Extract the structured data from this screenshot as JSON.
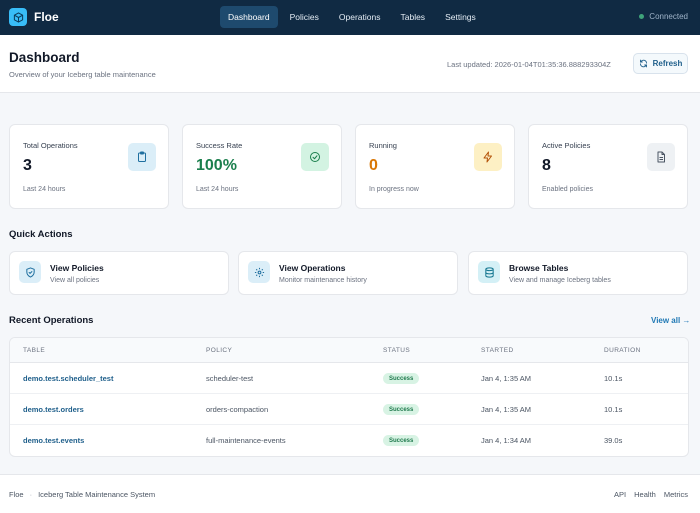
{
  "app": {
    "name": "Floe",
    "connection_status": "Connected"
  },
  "nav": {
    "items": [
      "Dashboard",
      "Policies",
      "Operations",
      "Tables",
      "Settings"
    ],
    "active": "Dashboard"
  },
  "header": {
    "title": "Dashboard",
    "subtitle": "Overview of your Iceberg table maintenance",
    "last_updated": "Last updated: 2026-01-04T01:35:36.888293304Z",
    "refresh_label": "Refresh"
  },
  "stats": [
    {
      "label": "Total Operations",
      "value": "3",
      "sub": "Last 24 hours",
      "icon": "clipboard-icon",
      "value_color": "#111827",
      "icon_bg": "#dbeef8",
      "icon_color": "#1f6f9f"
    },
    {
      "label": "Success Rate",
      "value": "100%",
      "sub": "Last 24 hours",
      "icon": "check-circle-icon",
      "value_color": "#1b7f4d",
      "icon_bg": "#d3f3e2",
      "icon_color": "#1b7f4d"
    },
    {
      "label": "Running",
      "value": "0",
      "sub": "In progress now",
      "icon": "lightning-icon",
      "value_color": "#d97706",
      "icon_bg": "#fdf0c4",
      "icon_color": "#b45309"
    },
    {
      "label": "Active Policies",
      "value": "8",
      "sub": "Enabled policies",
      "icon": "document-icon",
      "value_color": "#111827",
      "icon_bg": "#eef1f4",
      "icon_color": "#4b5563"
    }
  ],
  "quick_actions": {
    "title": "Quick Actions",
    "items": [
      {
        "title": "View Policies",
        "sub": "View all policies",
        "icon": "shield-icon",
        "icon_bg": "#dbeef8",
        "icon_color": "#1f6f9f"
      },
      {
        "title": "View Operations",
        "sub": "Monitor maintenance history",
        "icon": "gear-icon",
        "icon_bg": "#dbeef8",
        "icon_color": "#1f6f9f"
      },
      {
        "title": "Browse Tables",
        "sub": "View and manage Iceberg tables",
        "icon": "database-icon",
        "icon_bg": "#d4f0f6",
        "icon_color": "#12758f"
      }
    ]
  },
  "recent": {
    "title": "Recent Operations",
    "view_all": "View all →",
    "columns": [
      "TABLE",
      "POLICY",
      "STATUS",
      "STARTED",
      "DURATION"
    ],
    "rows": [
      {
        "table": "demo.test.scheduler_test",
        "policy": "scheduler-test",
        "status": "Success",
        "started": "Jan 4, 1:35 AM",
        "duration": "10.1s"
      },
      {
        "table": "demo.test.orders",
        "policy": "orders-compaction",
        "status": "Success",
        "started": "Jan 4, 1:35 AM",
        "duration": "10.1s"
      },
      {
        "table": "demo.test.events",
        "policy": "full-maintenance-events",
        "status": "Success",
        "started": "Jan 4, 1:34 AM",
        "duration": "39.0s"
      }
    ]
  },
  "footer": {
    "brand": "Floe",
    "separator": "·",
    "tagline": "Iceberg Table Maintenance System",
    "links": [
      "API",
      "Health",
      "Metrics"
    ]
  }
}
